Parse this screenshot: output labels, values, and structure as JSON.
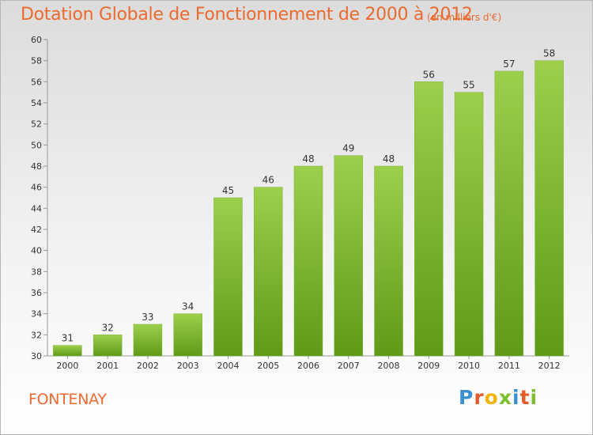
{
  "title": "Dotation Globale de Fonctionnement de 2000 à 2012",
  "subtitle": "(en milliers d'€)",
  "city": "FONTENAY",
  "logo": "Proxiti",
  "colors": {
    "accent": "#ec6a2e",
    "bar_light": "#9ccf4c",
    "bar_dark": "#5f9a18"
  },
  "chart_data": {
    "type": "bar",
    "title": "Dotation Globale de Fonctionnement de 2000 à 2012",
    "subtitle": "(en milliers d'€)",
    "categories": [
      "2000",
      "2001",
      "2002",
      "2003",
      "2004",
      "2005",
      "2006",
      "2007",
      "2008",
      "2009",
      "2010",
      "2011",
      "2012"
    ],
    "values": [
      31,
      32,
      33,
      34,
      45,
      46,
      48,
      49,
      48,
      56,
      55,
      57,
      58
    ],
    "ylim": [
      30,
      60
    ],
    "yticks": [
      30,
      32,
      34,
      36,
      38,
      40,
      42,
      44,
      46,
      48,
      50,
      52,
      54,
      56,
      58,
      60
    ],
    "grid": false,
    "legend": "none"
  }
}
